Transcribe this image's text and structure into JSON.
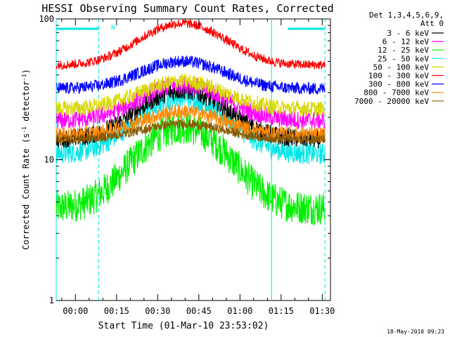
{
  "chart_data": {
    "type": "line",
    "title": "HESSI Observing Summary Count Rates, Corrected",
    "xlabel": "Start Time (01-Mar-10 23:53:02)",
    "ylabel_main": "Corrected Count Rate (s",
    "ylabel_sup1": "-1",
    "ylabel_mid": " detector",
    "ylabel_sup2": "-1",
    "ylabel_end": ")",
    "yscale": "log",
    "ylim": [
      1,
      100
    ],
    "xlim_minutes": [
      -7,
      93
    ],
    "x_ticks": [
      {
        "label": "00:00",
        "min": 0
      },
      {
        "label": "00:15",
        "min": 15
      },
      {
        "label": "00:30",
        "min": 30
      },
      {
        "label": "00:45",
        "min": 45
      },
      {
        "label": "01:00",
        "min": 60
      },
      {
        "label": "01:15",
        "min": 75
      },
      {
        "label": "01:30",
        "min": 90
      }
    ],
    "y_ticks": [
      {
        "label": "1",
        "value": 1
      },
      {
        "label": "10",
        "value": 10
      },
      {
        "label": "100",
        "value": 100
      }
    ],
    "legend_header": [
      "Det 1,3,4,5,6,9,",
      "Att 0"
    ],
    "legend_placement": "top-right, outside plot",
    "night_marker": "N",
    "night_intervals_minutes": [
      [
        -7,
        8.5
      ],
      [
        77.5,
        91
      ]
    ],
    "vertical_lines": [
      {
        "min": -7,
        "style": "solid"
      },
      {
        "min": 8.5,
        "style": "dashed"
      },
      {
        "min": 71.5,
        "style": "solid"
      },
      {
        "min": 91,
        "style": "dashed"
      }
    ],
    "curve_shape": {
      "peak_min": 39,
      "width_min": 14,
      "noise": "high-frequency jitter"
    },
    "series": [
      {
        "name": "3 - 6 keV",
        "color": "#000000",
        "base": 14,
        "peak": 31,
        "jitter": 0.06
      },
      {
        "name": "6 - 12 keV",
        "color": "#ff00ff",
        "base": 19,
        "peak": 34,
        "jitter": 0.06
      },
      {
        "name": "12 - 25 keV",
        "color": "#00ee00",
        "base": 4.5,
        "peak": 17,
        "jitter": 0.11
      },
      {
        "name": "25 - 50 keV",
        "color": "#00e5e5",
        "base": 11,
        "peak": 28,
        "jitter": 0.07
      },
      {
        "name": "50 - 100 keV",
        "color": "#d8d800",
        "base": 23,
        "peak": 36,
        "jitter": 0.05
      },
      {
        "name": "100 - 300 keV",
        "color": "#ff0000",
        "base": 47,
        "peak": 93,
        "jitter": 0.03
      },
      {
        "name": "300 - 800 keV",
        "color": "#0000ff",
        "base": 32,
        "peak": 50,
        "jitter": 0.04
      },
      {
        "name": "800 - 7000 keV",
        "color": "#ff8800",
        "base": 15,
        "peak": 22,
        "jitter": 0.05
      },
      {
        "name": "7000 - 20000 keV",
        "color": "#8b5a00",
        "base": 14,
        "peak": 18,
        "jitter": 0.03
      }
    ],
    "footer_date": "18-May-2010 09:23"
  }
}
